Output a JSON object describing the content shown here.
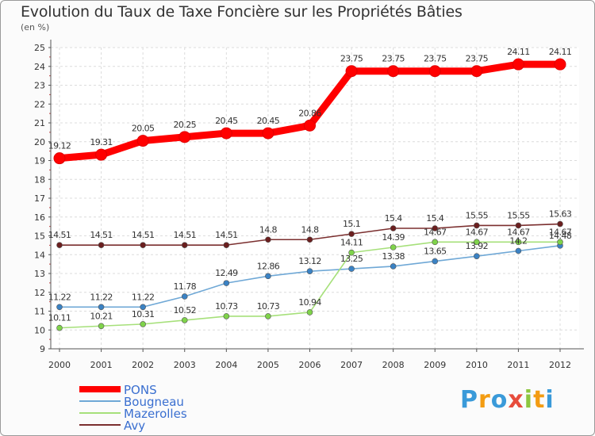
{
  "title": "Evolution du Taux de Taxe Foncière sur les Propriétés Bâties",
  "subtitle": "(en %)",
  "logo": {
    "letters": [
      "P",
      "r",
      "o",
      "x",
      "i",
      "t",
      "i"
    ],
    "colors": [
      "#3a9ad9",
      "#f39c12",
      "#3a9ad9",
      "#e74c3c",
      "#8dc63f",
      "#f39c12",
      "#3a9ad9"
    ]
  },
  "chart_data": {
    "type": "line",
    "title": "Evolution du Taux de Taxe Foncière sur les Propriétés Bâties",
    "ylabel": "(en %)",
    "xlabel": "",
    "x": [
      "2000",
      "2001",
      "2002",
      "2003",
      "2004",
      "2005",
      "2006",
      "2007",
      "2008",
      "2009",
      "2010",
      "2011",
      "2012"
    ],
    "ylim": [
      9,
      25
    ],
    "yticks": [
      "9",
      "10",
      "11",
      "12",
      "13",
      "14",
      "15",
      "16",
      "17",
      "18",
      "19",
      "20",
      "21",
      "22",
      "23",
      "24",
      "25"
    ],
    "grid": true,
    "legend_position": "bottom-left",
    "series": [
      {
        "name": "PONS",
        "color": "#ff0000",
        "values": [
          19.12,
          19.31,
          20.05,
          20.25,
          20.45,
          20.45,
          20.86,
          23.75,
          23.75,
          23.75,
          23.75,
          24.11,
          24.11
        ],
        "labels": [
          "19.12",
          "19.31",
          "20.05",
          "20.25",
          "20.45",
          "20.45",
          "20.86",
          "23.75",
          "23.75",
          "23.75",
          "23.75",
          "24.11",
          "24.11"
        ]
      },
      {
        "name": "Bougneau",
        "color": "#6fa8d6",
        "values": [
          11.22,
          11.22,
          11.22,
          11.78,
          12.49,
          12.86,
          13.12,
          13.25,
          13.38,
          13.65,
          13.92,
          14.2,
          14.48
        ],
        "labels": [
          "11.22",
          "11.22",
          "11.22",
          "11.78",
          "12.49",
          "12.86",
          "13.12",
          "13.25",
          "13.38",
          "13.65",
          "13.92",
          "14.2",
          "14.48"
        ]
      },
      {
        "name": "Mazerolles",
        "color": "#a6e07a",
        "values": [
          10.11,
          10.21,
          10.31,
          10.52,
          10.73,
          10.73,
          10.94,
          14.11,
          14.39,
          14.67,
          14.67,
          14.67,
          14.67
        ],
        "labels": [
          "10.11",
          "10.21",
          "10.31",
          "10.52",
          "10.73",
          "10.73",
          "10.94",
          "14.11",
          "14.39",
          "14.67",
          "14.67",
          "14.67",
          "14.67"
        ]
      },
      {
        "name": "Avy",
        "color": "#7b2f2f",
        "values": [
          14.51,
          14.51,
          14.51,
          14.51,
          14.51,
          14.8,
          14.8,
          15.1,
          15.4,
          15.4,
          15.55,
          15.55,
          15.63
        ],
        "labels": [
          "14.51",
          "14.51",
          "14.51",
          "14.51",
          "14.51",
          "14.8",
          "14.8",
          "15.1",
          "15.4",
          "15.4",
          "15.55",
          "15.55",
          "15.63"
        ]
      }
    ]
  }
}
